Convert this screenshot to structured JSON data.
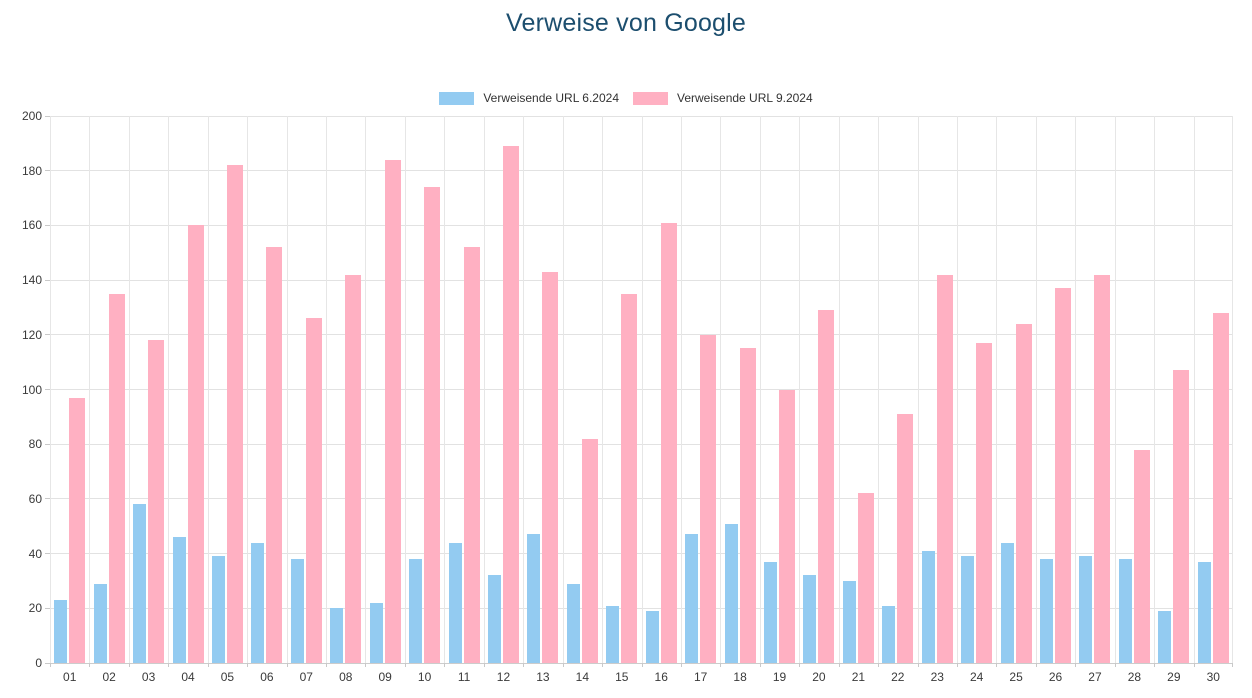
{
  "title": "Verweise von Google",
  "colors": {
    "title_text": "#1c4e6e",
    "series_blue": "#93cbf1",
    "series_pink": "#ffb0c2",
    "gridline": "#e2e2e2",
    "axis_text": "#3a3a3a"
  },
  "chart_data": {
    "type": "bar",
    "title": "Verweise von Google",
    "xlabel": "",
    "ylabel": "",
    "ylim": [
      0,
      200
    ],
    "y_ticks": [
      0,
      20,
      40,
      60,
      80,
      100,
      120,
      140,
      160,
      180,
      200
    ],
    "grid": true,
    "legend_position": "top",
    "categories": [
      "01",
      "02",
      "03",
      "04",
      "05",
      "06",
      "07",
      "08",
      "09",
      "10",
      "11",
      "12",
      "13",
      "14",
      "15",
      "16",
      "17",
      "18",
      "19",
      "20",
      "21",
      "22",
      "23",
      "24",
      "25",
      "26",
      "27",
      "28",
      "29",
      "30"
    ],
    "series": [
      {
        "name": "Verweisende URL 6.2024",
        "color": "#93cbf1",
        "values": [
          23,
          29,
          58,
          46,
          39,
          44,
          38,
          20,
          22,
          38,
          44,
          32,
          47,
          29,
          21,
          19,
          47,
          51,
          37,
          32,
          30,
          21,
          41,
          39,
          44,
          38,
          39,
          38,
          19,
          37
        ]
      },
      {
        "name": "Verweisende URL 9.2024",
        "color": "#ffb0c2",
        "values": [
          97,
          135,
          118,
          160,
          182,
          152,
          126,
          142,
          184,
          174,
          152,
          189,
          143,
          82,
          135,
          161,
          120,
          115,
          100,
          129,
          62,
          91,
          142,
          117,
          124,
          137,
          142,
          78,
          107,
          128
        ]
      }
    ]
  }
}
